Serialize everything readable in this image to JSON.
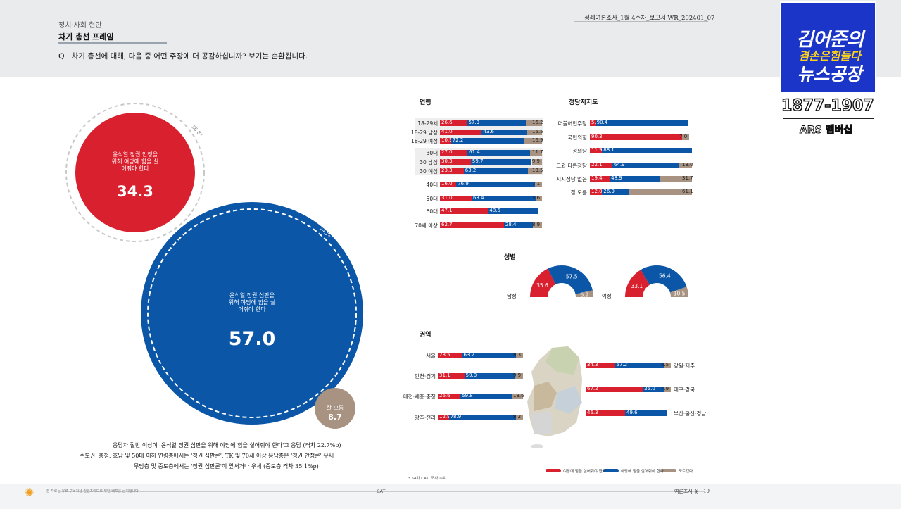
{
  "header": {
    "section": "정치·사회 현안",
    "title": "차기 총선 프레임",
    "question": "Q . 차기 총선에 대해, 다음 중 어떤 주장에 더 공감하십니까? 보기는 순환됩니다.",
    "report": "정례여론조사_1월 4주차_보고서  WR_202401_07"
  },
  "logo": {
    "line1": "김어준의",
    "line2": "겸손은힘들다",
    "line3": "뉴스공장",
    "phone": "1877-1907",
    "ars": "ARS 멤버십"
  },
  "bubbles": {
    "stable": {
      "label": "윤석열 정권 안정을 위해 여당에 힘을 실어줘야 한다",
      "value": "34.3",
      "prev": "36.8*"
    },
    "judge": {
      "label": "윤석열 정권 심판을 위해 야당에 힘을 실어줘야 한다",
      "value": "57.0",
      "prev": "54.7*"
    },
    "dunno": {
      "label": "잘 모름",
      "value": "8.7"
    }
  },
  "summary": [
    "응답자 절반 이상이 '윤석열 정권 심판을 위해 야당에 힘을 실어줘야 한다'고 응답 (격차 22.7%p)",
    "수도권, 충청, 호남 및 50대 이하 연령층에서는 '정권 심판론', TK 및 70세 이상 응답층은 '정권 안정론' 우세",
    "무당층 및 중도층에서는 '정권 심판론'이 앞서거나 우세 (중도층 격차 35.1%p)"
  ],
  "titles": {
    "age": "연령",
    "party": "정당지지도",
    "gender": "성별",
    "region": "권역"
  },
  "chart_data": [
    {
      "type": "bar",
      "title": "연령",
      "stacked": true,
      "categories": [
        "18-29세",
        "18-29 남성",
        "18-29 여성",
        "30대",
        "30 남성",
        "30 여성",
        "40대",
        "50대",
        "60대",
        "70세 이상"
      ],
      "series": [
        {
          "name": "여당에 힘을 실어줘야 한다",
          "values": [
            26.6,
            41.0,
            10.9,
            27.0,
            30.3,
            23.3,
            16.0,
            31.0,
            47.1,
            62.7
          ]
        },
        {
          "name": "야당에 힘을 실어줘야 한다",
          "values": [
            57.3,
            43.6,
            72.2,
            61.4,
            59.7,
            63.2,
            76.9,
            63.4,
            48.6,
            28.4
          ]
        },
        {
          "name": "모르겠다",
          "values": [
            16.2,
            15.5,
            16.9,
            11.7,
            9.9,
            13.5,
            7.1,
            5.6,
            null,
            8.9
          ]
        }
      ]
    },
    {
      "type": "bar",
      "title": "정당지지도",
      "stacked": true,
      "categories": [
        "더불어민주당",
        "국민의힘",
        "정의당",
        "그외 다른정당",
        "지지정당 없음",
        "잘 모름"
      ],
      "series": [
        {
          "name": "여당에 힘을 실어줘야 한다",
          "values": [
            5.3,
            90.3,
            11.9,
            22.1,
            19.4,
            12.0
          ]
        },
        {
          "name": "야당에 힘을 실어줘야 한다",
          "values": [
            90.4,
            null,
            88.1,
            64.9,
            48.9,
            26.9
          ]
        },
        {
          "name": "모르겠다",
          "values": [
            null,
            7.0,
            null,
            13.0,
            31.7,
            61.1
          ]
        }
      ]
    },
    {
      "type": "pie",
      "title": "성별",
      "groups": [
        {
          "name": "남성",
          "values": [
            35.6,
            57.5,
            6.9
          ]
        },
        {
          "name": "여성",
          "values": [
            33.1,
            56.4,
            10.5
          ]
        }
      ],
      "labels": [
        "여당에 힘을 실어줘야 한다",
        "야당에 힘을 실어줘야 한다",
        "모르겠다"
      ]
    },
    {
      "type": "bar",
      "title": "권역",
      "stacked": true,
      "categories": [
        "서울",
        "인천·경기",
        "대전·세종·충청",
        "광주·전라",
        "강원·제주",
        "대구·경북",
        "부산·울산·경남"
      ],
      "series": [
        {
          "name": "여당에 힘을 실어줘야 한다",
          "values": [
            28.5,
            31.1,
            26.6,
            12.9,
            34.3,
            67.2,
            46.3
          ]
        },
        {
          "name": "야당에 힘을 실어줘야 한다",
          "values": [
            63.2,
            59.0,
            59.8,
            78.9,
            57.2,
            25.0,
            49.6
          ]
        },
        {
          "name": "모르겠다",
          "values": [
            8.3,
            9.9,
            13.6,
            8.2,
            8.5,
            7.9,
            null
          ]
        }
      ]
    }
  ],
  "legend": [
    "여당에 힘을 실어줘야 한다",
    "야당에 힘을 실어줘야 한다",
    "모르겠다"
  ],
  "footnote": "* 54차 CATI 조사 수치",
  "footer": {
    "left": "본 자료는 유료 구독자용 컨텐츠이므로 무단 배포를 금지합니다.",
    "center": "CATI",
    "right": "여론조사 꽃 · 19"
  },
  "colors": {
    "red": "#d8202e",
    "blue": "#0b56a6",
    "gray": "#a89383",
    "bg": "#e9ebed"
  }
}
